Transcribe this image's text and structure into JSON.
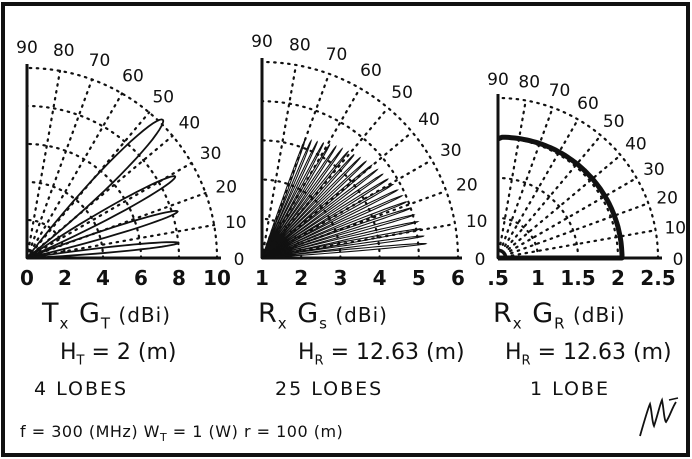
{
  "frame": {
    "border_color": "#111111",
    "background": "#ffffff"
  },
  "chart_data": [
    {
      "type": "polar",
      "angle_ticks": [
        "90",
        "80",
        "70",
        "60",
        "50",
        "40",
        "30",
        "20",
        "10",
        "0"
      ],
      "radial_ticks": [
        "0",
        "2",
        "4",
        "6",
        "8",
        "10"
      ],
      "rmax": 10,
      "grid": true,
      "label_parts": [
        "T",
        "x",
        " G",
        "T",
        " (dBi)"
      ],
      "height_parts": [
        "H",
        "T",
        " = 2 (m)"
      ],
      "lobes_text": "4 LOBES",
      "lobes": [
        {
          "angle": 45.5,
          "peak": 10.2,
          "width": 7
        },
        {
          "angle": 28.8,
          "peak": 8.9,
          "width": 5
        },
        {
          "angle": 17.2,
          "peak": 8.3,
          "width": 4
        },
        {
          "angle": 5.7,
          "peak": 8.0,
          "width": 3
        }
      ]
    },
    {
      "type": "polar",
      "angle_ticks": [
        "90",
        "80",
        "70",
        "60",
        "50",
        "40",
        "30",
        "20",
        "10",
        "0"
      ],
      "radial_ticks": [
        "1",
        "2",
        "3",
        "4",
        "5",
        "6"
      ],
      "rmin": 1,
      "rmax": 6,
      "grid": true,
      "label_parts": [
        "R",
        "x",
        "  G",
        "s",
        " (dBi)"
      ],
      "height_parts": [
        "H",
        "R",
        " = 12.63 (m)"
      ],
      "lobes_text": "25 LOBES",
      "lobes_count": 25,
      "lobe_envelope": {
        "start_angle": 70,
        "end_angle": 5,
        "start_peak": 4.2,
        "end_peak": 5.2
      }
    },
    {
      "type": "polar",
      "angle_ticks": [
        "90",
        "80",
        "70",
        "60",
        "50",
        "40",
        "30",
        "20",
        "10",
        "0"
      ],
      "radial_ticks": [
        ".5",
        "1",
        "1.5",
        "2",
        "2.5"
      ],
      "rmin": 0.5,
      "rmax": 2.5,
      "grid": true,
      "label_parts": [
        "R",
        "x",
        "  G",
        "R",
        " (dBi)"
      ],
      "height_parts": [
        "H",
        "R",
        " = 12.63 (m)"
      ],
      "lobes_text": "1 LOBE",
      "curve": {
        "peak": 2.05,
        "angle_start": 88,
        "angle_end": 0
      }
    }
  ],
  "parameters": "f = 300 (MHz)   Wₜ = 1 (W)   r = 100 (m)",
  "parameters_parts": [
    "f = 300 (MHz)   W",
    "T",
    " = 1 (W)   r = 100 (m)"
  ]
}
